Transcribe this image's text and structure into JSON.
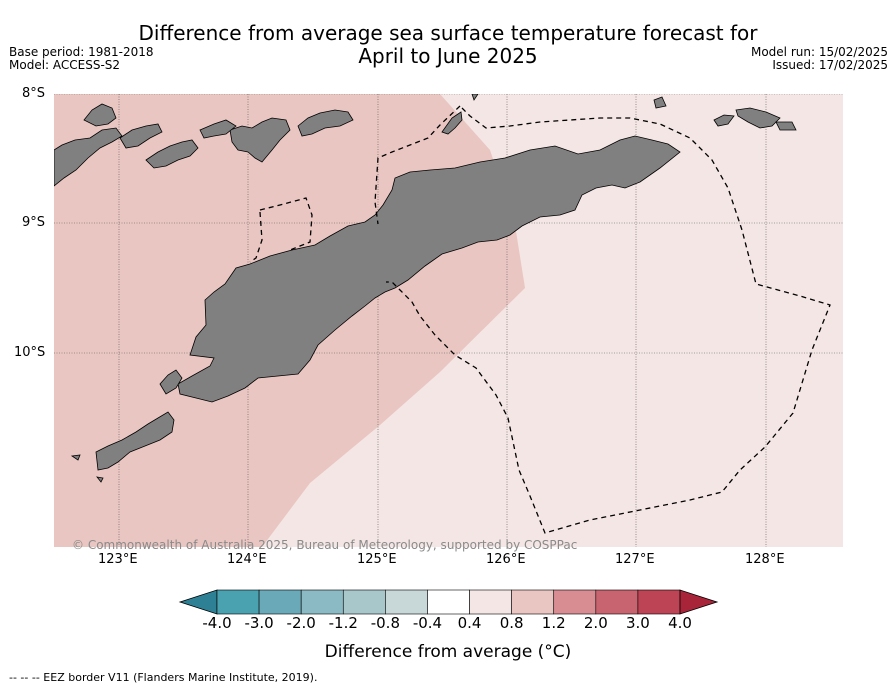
{
  "title": {
    "line1": "Difference from average sea surface temperature forecast for",
    "line2": "April to June 2025"
  },
  "meta_left": {
    "base_period": "Base period: 1981-2018",
    "model": "Model: ACCESS-S2"
  },
  "meta_right": {
    "model_run": "Model run: 15/02/2025",
    "issued": "Issued: 17/02/2025"
  },
  "axes": {
    "lat_ticks": [
      "8°S",
      "9°S",
      "10°S"
    ],
    "lon_ticks": [
      "123°E",
      "124°E",
      "125°E",
      "126°E",
      "127°E",
      "128°E"
    ]
  },
  "colorbar": {
    "title": "Difference from average (°C)",
    "ticks": [
      "-4.0",
      "-3.0",
      "-2.0",
      "-1.2",
      "-0.8",
      "-0.4",
      "0.4",
      "0.8",
      "1.2",
      "2.0",
      "3.0",
      "4.0"
    ],
    "colors": [
      "#2e8195",
      "#4aa1b0",
      "#6aaab8",
      "#8bbac4",
      "#a8c7ca",
      "#c8d7d8",
      "#ffffff",
      "#f4e6e4",
      "#e9c6c1",
      "#d88d93",
      "#c8646f",
      "#bd4454",
      "#a82439"
    ]
  },
  "map": {
    "land_color": "#808080",
    "anomaly_zone_light": "#f4e6e4",
    "anomaly_zone_medium": "#e9c6c1"
  },
  "copyright": "© Commonwealth of Australia 2025, Bureau of Meteorology, supported by COSPPac",
  "footnote": "--  --  -- EEZ border V11 (Flanders Marine Institute, 2019)."
}
